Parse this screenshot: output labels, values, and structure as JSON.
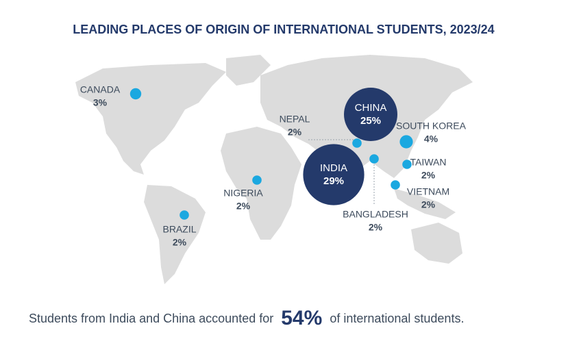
{
  "chart_data": {
    "type": "bubble-map",
    "title": "LEADING PLACES OF ORIGIN OF INTERNATIONAL STUDENTS, 2023/24",
    "categories": [
      "CANADA",
      "CHINA",
      "INDIA",
      "SOUTH KOREA",
      "NEPAL",
      "BANGLADESH",
      "TAIWAN",
      "VIETNAM",
      "NIGERIA",
      "BRAZIL"
    ],
    "values": [
      3,
      25,
      29,
      4,
      2,
      2,
      2,
      2,
      2,
      2
    ],
    "value_labels": [
      "3%",
      "25%",
      "29%",
      "4%",
      "2%",
      "2%",
      "2%",
      "2%",
      "2%",
      "2%"
    ],
    "colors": [
      "#1ba8e0",
      "#243a6b",
      "#243a6b",
      "#1ba8e0",
      "#1ba8e0",
      "#1ba8e0",
      "#1ba8e0",
      "#1ba8e0",
      "#1ba8e0",
      "#1ba8e0"
    ],
    "footer": {
      "before": "Students from India and China accounted for",
      "highlight": "54%",
      "after": "of international students."
    }
  }
}
